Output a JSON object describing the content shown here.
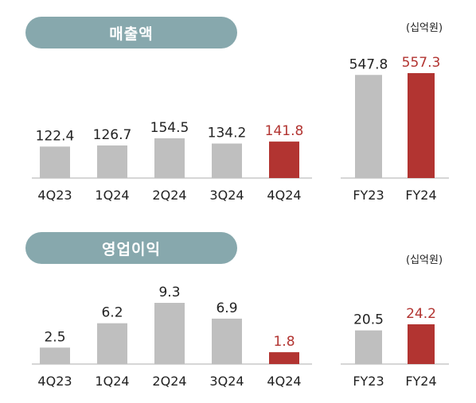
{
  "colors": {
    "pill_bg": "#87a8ad",
    "bar_gray": "#bfbfbf",
    "bar_red": "#b23431",
    "label_dark": "#222222",
    "label_red": "#b23431",
    "baseline": "#c8c8c8"
  },
  "sections": [
    {
      "title": "매출액",
      "unit": "(십억원)"
    },
    {
      "title": "영업이익",
      "unit": "(십억원)"
    }
  ],
  "chart_data": [
    {
      "type": "bar",
      "section": "매출액",
      "group": "quarterly",
      "categories": [
        "4Q23",
        "1Q24",
        "2Q24",
        "3Q24",
        "4Q24"
      ],
      "values": [
        122.4,
        126.7,
        154.5,
        134.2,
        141.8
      ],
      "labels": [
        "122.4",
        "126.7",
        "154.5",
        "134.2",
        "141.8"
      ],
      "highlight_index": 4
    },
    {
      "type": "bar",
      "section": "매출액",
      "group": "annual",
      "categories": [
        "FY23",
        "FY24"
      ],
      "values": [
        547.8,
        557.3
      ],
      "labels": [
        "547.8",
        "557.3"
      ],
      "highlight_index": 1
    },
    {
      "type": "bar",
      "section": "영업이익",
      "group": "quarterly",
      "categories": [
        "4Q23",
        "1Q24",
        "2Q24",
        "3Q24",
        "4Q24"
      ],
      "values": [
        2.5,
        6.2,
        9.3,
        6.9,
        1.8
      ],
      "labels": [
        "2.5",
        "6.2",
        "9.3",
        "6.9",
        "1.8"
      ],
      "highlight_index": 4
    },
    {
      "type": "bar",
      "section": "영업이익",
      "group": "annual",
      "categories": [
        "FY23",
        "FY24"
      ],
      "values": [
        20.5,
        24.2
      ],
      "labels": [
        "20.5",
        "24.2"
      ],
      "highlight_index": 1
    }
  ]
}
